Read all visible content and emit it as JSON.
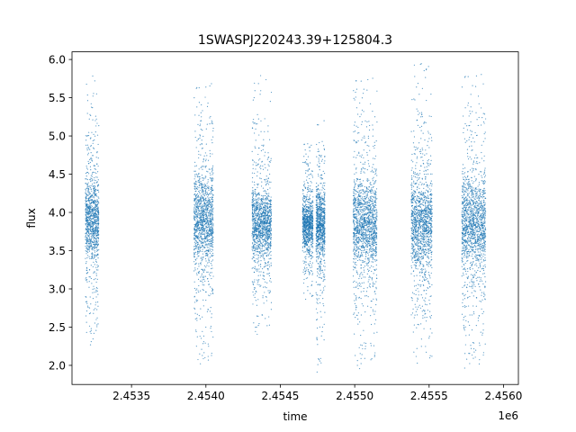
{
  "chart_data": {
    "type": "scatter",
    "title": "1SWASPJ220243.39+125804.3",
    "xlabel": "time",
    "ylabel": "flux",
    "x_offset_label": "1e6",
    "xlim": [
      2453100,
      2456100
    ],
    "ylim": [
      1.75,
      6.1
    ],
    "x_ticks": [
      2453500,
      2454000,
      2454500,
      2455000,
      2455500,
      2456000
    ],
    "x_tick_labels": [
      "2.4535",
      "2.4540",
      "2.4545",
      "2.4550",
      "2.4555",
      "2.4560"
    ],
    "y_ticks": [
      2.0,
      2.5,
      3.0,
      3.5,
      4.0,
      4.5,
      5.0,
      5.5,
      6.0
    ],
    "y_tick_labels": [
      "2.0",
      "2.5",
      "3.0",
      "3.5",
      "4.0",
      "4.5",
      "5.0",
      "5.5",
      "6.0"
    ],
    "grid": false,
    "marker_color": "#1f77b4",
    "segments": [
      {
        "x_start": 2453190,
        "x_end": 2453280,
        "y_center": 3.9,
        "y_min": 2.25,
        "y_max": 5.83
      },
      {
        "x_start": 2453920,
        "x_end": 2454050,
        "y_center": 3.9,
        "y_min": 1.95,
        "y_max": 5.75
      },
      {
        "x_start": 2454310,
        "x_end": 2454440,
        "y_center": 3.85,
        "y_min": 2.4,
        "y_max": 5.8
      },
      {
        "x_start": 2454650,
        "x_end": 2454720,
        "y_center": 3.85,
        "y_min": 2.85,
        "y_max": 4.9
      },
      {
        "x_start": 2454740,
        "x_end": 2454800,
        "y_center": 3.85,
        "y_min": 1.9,
        "y_max": 5.25
      },
      {
        "x_start": 2454990,
        "x_end": 2455150,
        "y_center": 3.85,
        "y_min": 1.95,
        "y_max": 5.85
      },
      {
        "x_start": 2455380,
        "x_end": 2455520,
        "y_center": 3.85,
        "y_min": 2.0,
        "y_max": 5.95
      },
      {
        "x_start": 2455720,
        "x_end": 2455880,
        "y_center": 3.85,
        "y_min": 1.95,
        "y_max": 5.9
      }
    ]
  }
}
